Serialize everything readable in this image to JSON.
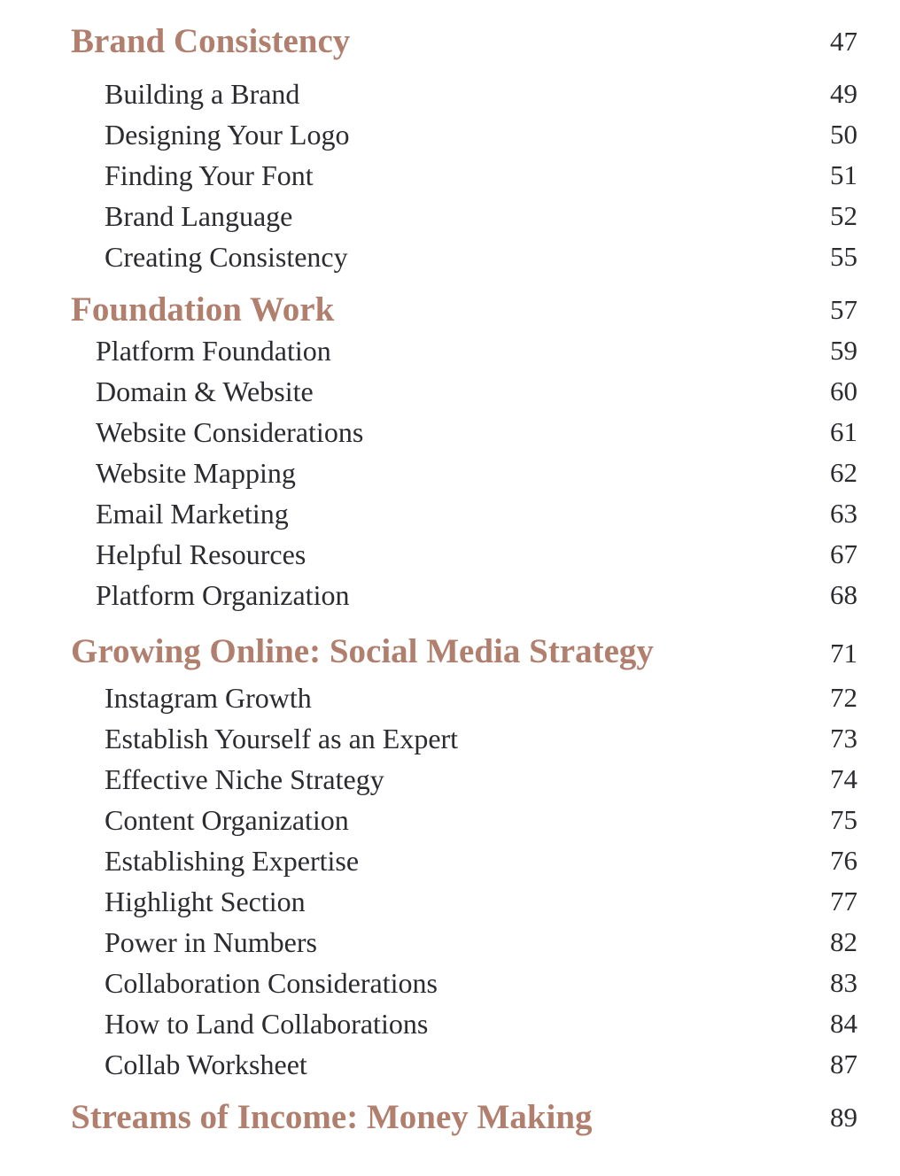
{
  "sections": [
    {
      "title": "Brand Consistency",
      "page": "47",
      "items": [
        {
          "label": "Building a Brand",
          "page": "49"
        },
        {
          "label": "Designing Your Logo",
          "page": "50"
        },
        {
          "label": "Finding Your Font",
          "page": "51"
        },
        {
          "label": "Brand Language",
          "page": "52"
        },
        {
          "label": "Creating Consistency",
          "page": "55"
        }
      ]
    },
    {
      "title": "Foundation Work",
      "page": "57",
      "items": [
        {
          "label": "Platform Foundation",
          "page": "59"
        },
        {
          "label": "Domain & Website",
          "page": "60"
        },
        {
          "label": "Website Considerations",
          "page": "61"
        },
        {
          "label": "Website Mapping",
          "page": "62"
        },
        {
          "label": "Email Marketing",
          "page": "63"
        },
        {
          "label": "Helpful Resources",
          "page": "67"
        },
        {
          "label": "Platform Organization",
          "page": "68"
        }
      ]
    },
    {
      "title": "Growing Online: Social Media Strategy",
      "page": "71",
      "items": [
        {
          "label": "Instagram Growth",
          "page": "72"
        },
        {
          "label": "Establish Yourself as an Expert",
          "page": "73"
        },
        {
          "label": "Effective Niche Strategy",
          "page": "74"
        },
        {
          "label": "Content Organization",
          "page": "75"
        },
        {
          "label": "Establishing Expertise",
          "page": "76"
        },
        {
          "label": "Highlight Section",
          "page": "77"
        },
        {
          "label": "Power in Numbers",
          "page": "82"
        },
        {
          "label": "Collaboration Considerations",
          "page": "83"
        },
        {
          "label": "How to Land Collaborations",
          "page": "84"
        },
        {
          "label": "Collab Worksheet",
          "page": "87"
        }
      ]
    },
    {
      "title": "Streams of Income: Money Making",
      "page": "89",
      "items": []
    }
  ],
  "colors": {
    "heading": "#b07f6e",
    "text": "#2b2b30"
  }
}
